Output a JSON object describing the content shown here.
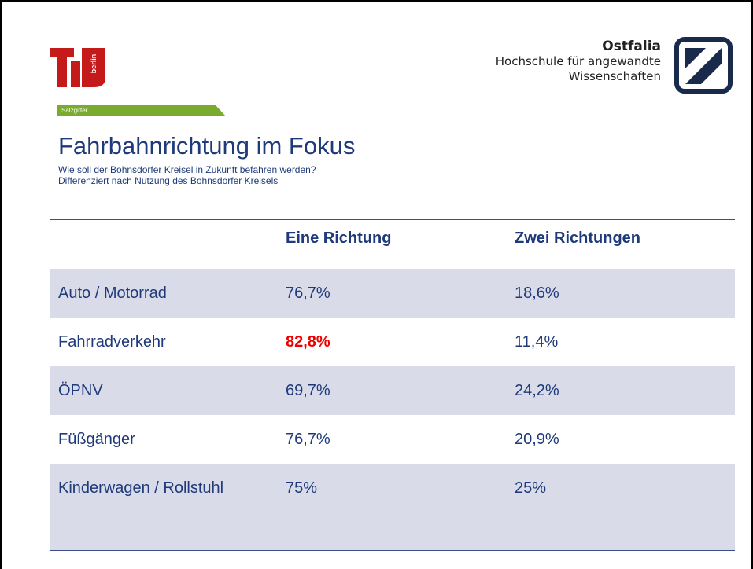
{
  "header": {
    "left_logo": {
      "text": "berlin"
    },
    "tab": "Salzgitter",
    "right_logo": {
      "name": "Ostfalia",
      "line1": "Hochschule für angewandte",
      "line2": "Wissenschaften"
    }
  },
  "title": "Fahrbahnrichtung im Fokus",
  "subtitle": [
    "Wie soll der Bohnsdorfer Kreisel in Zukunft befahren werden?",
    "Differenziert nach Nutzung des Bohnsdorfer Kreisels"
  ],
  "table": {
    "columns": [
      "",
      "Eine Richtung",
      "Zwei Richtungen"
    ],
    "rows": [
      [
        "Auto / Motorrad",
        "76,7%",
        "18,6%"
      ],
      [
        "Fahrradverkehr",
        "82,8%",
        "11,4%"
      ],
      [
        "ÖPNV",
        "69,7%",
        "24,2%"
      ],
      [
        "Füßgänger",
        "76,7%",
        "20,9%"
      ],
      [
        "Kinderwagen / Rollstuhl",
        "75%",
        "25%"
      ]
    ]
  }
}
